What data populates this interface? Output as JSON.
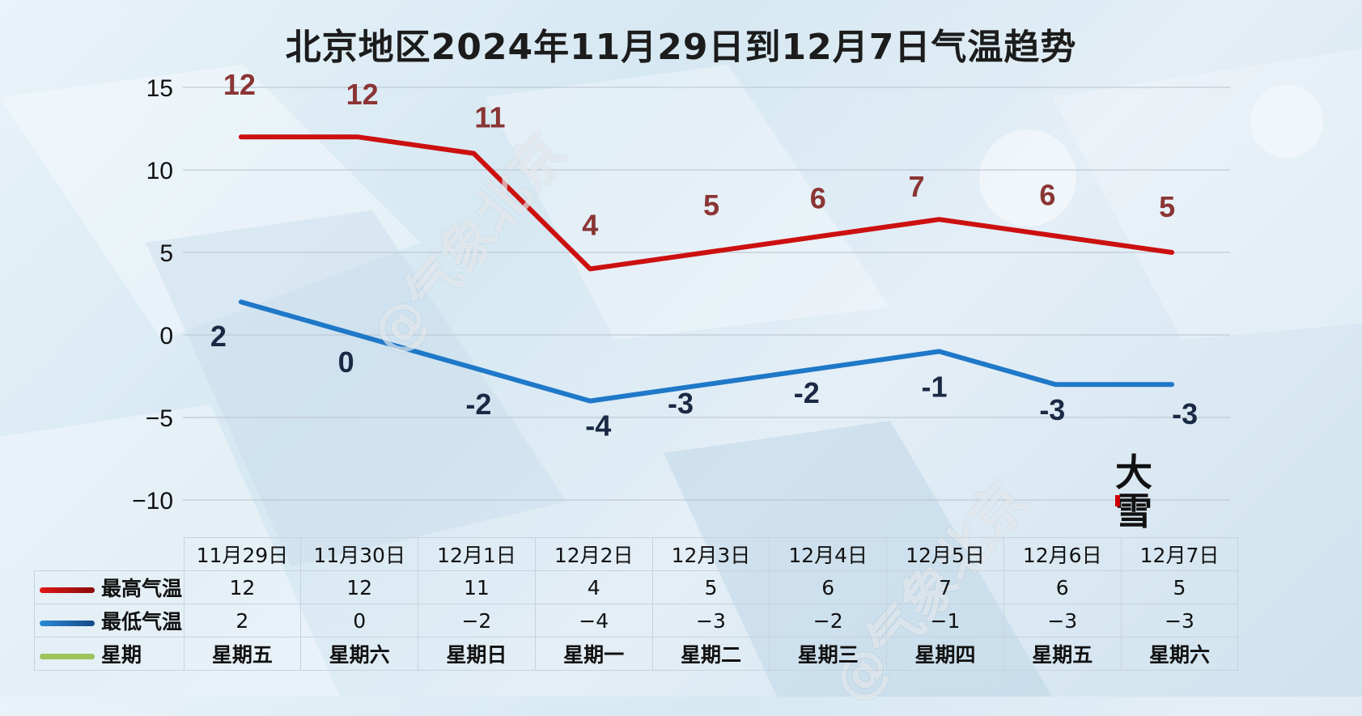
{
  "chart_data": {
    "type": "line",
    "title": "北京地区2024年11月29日到12月7日气温趋势",
    "categories": [
      "11月29日",
      "11月30日",
      "12月1日",
      "12月2日",
      "12月3日",
      "12月4日",
      "12月5日",
      "12月6日",
      "12月7日"
    ],
    "series": [
      {
        "name": "最高气温",
        "values": [
          12,
          12,
          11,
          4,
          5,
          6,
          7,
          6,
          5
        ],
        "color": "#cc1010",
        "label_color": "#8b3535"
      },
      {
        "name": "最低气温",
        "values": [
          2,
          0,
          -2,
          -4,
          -3,
          -2,
          -1,
          -3,
          -3
        ],
        "color": "#1f78c8",
        "label_color": "#1a2a44"
      }
    ],
    "weekdays_label": "星期",
    "weekdays": [
      "星期五",
      "星期六",
      "星期日",
      "星期一",
      "星期二",
      "星期三",
      "星期四",
      "星期五",
      "星期六"
    ],
    "ylim": [
      -10,
      15
    ],
    "yticks": [
      -10,
      -5,
      0,
      5,
      10,
      15
    ],
    "grid": true,
    "legend": "bottom-left table"
  },
  "stamp_text": "大雪",
  "watermark_text": "@气象北京"
}
